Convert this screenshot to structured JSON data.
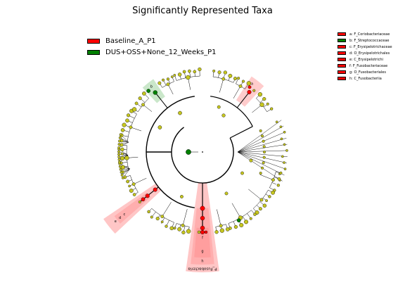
{
  "title": "Significantly Represented Taxa",
  "colors": {
    "group_a": "#ff0000",
    "group_b": "#008000",
    "neutral_node": "#c6c61f",
    "branch": "#000000",
    "clade_a_fill": "#ff8080",
    "clade_b_fill": "#9fd39f"
  },
  "groups": [
    {
      "label": "Baseline_A_P1",
      "color": "#ff0000"
    },
    {
      "label": "DUS+OSS+None_12_Weeks_P1",
      "color": "#008000"
    }
  ],
  "key_legend": [
    {
      "letter": "a",
      "taxon": "F_Coriobacteriaceae",
      "color": "#ff0000"
    },
    {
      "letter": "b",
      "taxon": "F_Streptococcaceae",
      "color": "#008000"
    },
    {
      "letter": "c",
      "taxon": "F_Erysipelotrichaceae",
      "color": "#ff0000"
    },
    {
      "letter": "d",
      "taxon": "O_Erysipelotrichales",
      "color": "#ff0000"
    },
    {
      "letter": "e",
      "taxon": "C_Erysipelotrichi",
      "color": "#ff0000"
    },
    {
      "letter": "f",
      "taxon": "F_Fusobacteriaceae",
      "color": "#ff0000"
    },
    {
      "letter": "g",
      "taxon": "O_Fusobacteriales",
      "color": "#ff0000"
    },
    {
      "letter": "h",
      "taxon": "C_Fusobacteriia",
      "color": "#ff0000"
    }
  ],
  "outer_label": "P_Fusobacteria"
}
